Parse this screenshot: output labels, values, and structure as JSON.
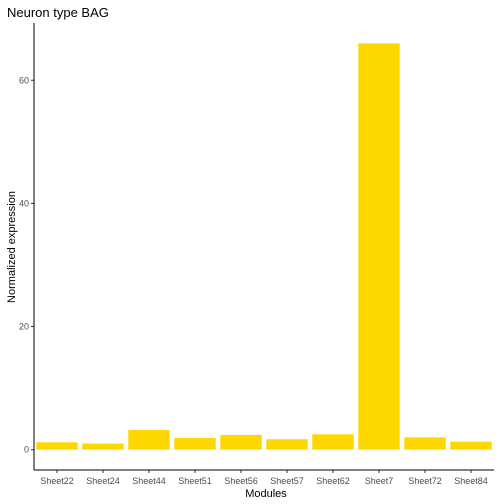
{
  "chart_data": {
    "type": "bar",
    "title": "Neuron type BAG",
    "xlabel": "Modules",
    "ylabel": "Normalized expression",
    "categories": [
      "Sheet22",
      "Sheet24",
      "Sheet44",
      "Sheet51",
      "Sheet56",
      "Sheet57",
      "Sheet62",
      "Sheet7",
      "Sheet72",
      "Sheet84"
    ],
    "values": [
      1.2,
      1.0,
      3.2,
      1.9,
      2.4,
      1.7,
      2.5,
      66.0,
      2.0,
      1.3
    ],
    "yticks": [
      0,
      20,
      40,
      60
    ],
    "ylim": [
      -3.3,
      69.3
    ],
    "grid": false,
    "bar_color": "#FFD700"
  }
}
